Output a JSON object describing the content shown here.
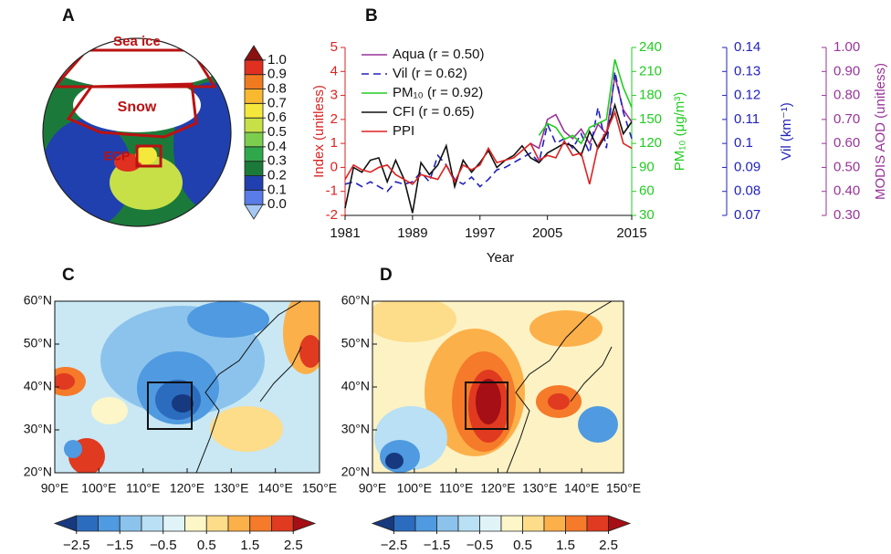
{
  "chart_data": [
    {
      "type": "globe",
      "panel": "A",
      "annotations": [
        "Sea ice",
        "Snow",
        "ECP"
      ],
      "colorbar": {
        "clim": [
          -0.1,
          1.1
        ],
        "colors": [
          "#a7c8f5",
          "#5a7ce8",
          "#2040b0",
          "#1b7a3a",
          "#2fa84c",
          "#7ccf4e",
          "#c8e048",
          "#f5e83c",
          "#f8b830",
          "#f07a20",
          "#e03020",
          "#8b1010"
        ],
        "ticks": [
          {
            "value": 0,
            "label": "0.0"
          },
          {
            "value": 0.1,
            "label": "0.1"
          },
          {
            "value": 0.2,
            "label": "0.2"
          },
          {
            "value": 0.3,
            "label": "0.3"
          },
          {
            "value": 0.4,
            "label": "0.4"
          },
          {
            "value": 0.5,
            "label": "0.5"
          },
          {
            "value": 0.6,
            "label": "0.6"
          },
          {
            "value": 0.7,
            "label": "0.7"
          },
          {
            "value": 0.8,
            "label": "0.8"
          },
          {
            "value": 0.9,
            "label": "0.9"
          },
          {
            "value": 1,
            "label": "1.0"
          }
        ]
      }
    },
    {
      "type": "line",
      "panel": "B",
      "xlabel": "Year",
      "x": [
        1981,
        1982,
        1983,
        1984,
        1985,
        1986,
        1987,
        1988,
        1989,
        1990,
        1991,
        1992,
        1993,
        1994,
        1995,
        1996,
        1997,
        1998,
        1999,
        2000,
        2001,
        2002,
        2003,
        2004,
        2005,
        2006,
        2007,
        2008,
        2009,
        2010,
        2011,
        2012,
        2013,
        2014,
        2015
      ],
      "xlim": [
        1981,
        2015
      ],
      "xticks": [
        1981,
        1989,
        1997,
        2005,
        2015
      ],
      "ylabel": "Index (unitless)",
      "ylim": [
        -2,
        5
      ],
      "yticks": [
        -2,
        -1,
        0,
        1,
        2,
        3,
        4,
        5
      ],
      "ycolor": "#dd2222",
      "y2label": "PM₁₀ (μg/m³)",
      "y2lim": [
        30,
        240
      ],
      "y2ticks": [
        30,
        60,
        90,
        120,
        150,
        180,
        210,
        240
      ],
      "y2color": "#22cc22",
      "y3label": "Vil (km⁻¹)",
      "y3lim": [
        0.07,
        0.14
      ],
      "y3ticks": [
        0.07,
        0.08,
        0.09,
        0.1,
        0.11,
        0.12,
        0.13,
        0.14
      ],
      "y3color": "#2222bb",
      "y4label": "MODIS AOD (unitless)",
      "y4lim": [
        0.3,
        1
      ],
      "y4ticks": [
        {
          "value": 0.3,
          "label": "0.30"
        },
        {
          "value": 0.4,
          "label": "0.40"
        },
        {
          "value": 0.5,
          "label": "0.50"
        },
        {
          "value": 0.6,
          "label": "0.60"
        },
        {
          "value": 0.7,
          "label": "0.70"
        },
        {
          "value": 0.8,
          "label": "0.80"
        },
        {
          "value": 0.9,
          "label": "0.90"
        },
        {
          "value": 1,
          "label": "1.00"
        }
      ],
      "y4color": "#993399",
      "series": [
        {
          "name": "Aqua (r = 0.50)",
          "color": "#993399",
          "axis": "y4",
          "values": [
            null,
            null,
            null,
            null,
            null,
            null,
            null,
            null,
            null,
            null,
            null,
            null,
            null,
            null,
            null,
            null,
            null,
            null,
            null,
            null,
            null,
            null,
            0.6,
            0.58,
            0.7,
            0.72,
            0.65,
            0.62,
            0.66,
            0.6,
            0.68,
            0.64,
            0.88,
            0.74,
            0.69
          ]
        },
        {
          "name": "Vil (r = 0.62)",
          "color": "#2222bb",
          "axis": "y3",
          "dash": true,
          "values": [
            0.083,
            0.084,
            0.082,
            0.084,
            0.082,
            0.08,
            0.084,
            0.083,
            0.084,
            0.088,
            0.084,
            0.095,
            0.091,
            0.085,
            0.083,
            0.086,
            0.082,
            0.085,
            0.089,
            0.09,
            0.092,
            0.094,
            0.096,
            0.092,
            0.108,
            0.1,
            0.102,
            0.098,
            0.104,
            0.096,
            0.115,
            0.098,
            0.13,
            0.113,
            0.102
          ]
        },
        {
          "name": "PM₁₀ (r = 0.92)",
          "color": "#22cc22",
          "axis": "y2",
          "values": [
            null,
            null,
            null,
            null,
            null,
            null,
            null,
            null,
            null,
            null,
            null,
            null,
            null,
            null,
            null,
            null,
            null,
            null,
            null,
            null,
            null,
            null,
            null,
            130,
            145,
            140,
            125,
            130,
            120,
            140,
            145,
            150,
            225,
            190,
            165
          ]
        },
        {
          "name": "CFI (r = 0.65)",
          "color": "#111111",
          "axis": "y",
          "values": [
            -1.7,
            0,
            -0.2,
            0.3,
            0.4,
            -0.6,
            0.3,
            -0.5,
            -1.9,
            0.2,
            -0.3,
            0.1,
            0.9,
            -0.8,
            0.3,
            -0.2,
            0.2,
            0.7,
            0,
            0.3,
            0.5,
            0.9,
            0.4,
            0.2,
            0.6,
            0.8,
            1.0,
            0.9,
            0.5,
            1.5,
            0.8,
            1.4,
            2.6,
            1.4,
            1.9
          ]
        },
        {
          "name": "PPI",
          "color": "#dd2222",
          "axis": "y",
          "values": [
            -0.5,
            0.1,
            -0.1,
            -0.2,
            0,
            0.1,
            -0.3,
            -0.5,
            -0.7,
            -0.3,
            -0.4,
            -0.5,
            0.1,
            -0.6,
            0.1,
            -0.1,
            0.1,
            0.8,
            0.2,
            0.3,
            0.4,
            0.7,
            1.0,
            0.3,
            0.5,
            0.4,
            1.1,
            0.5,
            0.6,
            -0.7,
            0.9,
            1.5,
            2.3,
            1.0,
            0.8
          ]
        }
      ]
    },
    {
      "type": "map",
      "panel": "C",
      "xlim": [
        90,
        150
      ],
      "xticks": [
        {
          "value": 90,
          "label": "90°E"
        },
        {
          "value": 100,
          "label": "100°E"
        },
        {
          "value": 110,
          "label": "110°E"
        },
        {
          "value": 120,
          "label": "120°E"
        },
        {
          "value": 130,
          "label": "130°E"
        },
        {
          "value": 140,
          "label": "140°E"
        },
        {
          "value": 150,
          "label": "150°E"
        }
      ],
      "ylim": [
        20,
        60
      ],
      "yticks": [
        {
          "value": 20,
          "label": "20°N"
        },
        {
          "value": 30,
          "label": "30°N"
        },
        {
          "value": 40,
          "label": "40°N"
        },
        {
          "value": 50,
          "label": "50°N"
        },
        {
          "value": 60,
          "label": "60°N"
        }
      ],
      "colorbar": {
        "clim": [
          -3,
          3
        ],
        "colors": [
          "#17397f",
          "#2b6cbf",
          "#4f9ae0",
          "#8cc3ec",
          "#b9e0f4",
          "#e0f4f8",
          "#fdf6c8",
          "#fddc8a",
          "#fcb04a",
          "#f57a2a",
          "#e03a20",
          "#a50f15"
        ],
        "ticks": [
          {
            "value": -2.5,
            "label": "−2.5"
          },
          {
            "value": -1.5,
            "label": "−1.5"
          },
          {
            "value": -0.5,
            "label": "−0.5"
          },
          0.5,
          1.5,
          2.5
        ]
      }
    },
    {
      "type": "map",
      "panel": "D",
      "xlim": [
        90,
        150
      ],
      "xticks": [
        {
          "value": 90,
          "label": "90°E"
        },
        {
          "value": 100,
          "label": "100°E"
        },
        {
          "value": 110,
          "label": "110°E"
        },
        {
          "value": 120,
          "label": "120°E"
        },
        {
          "value": 130,
          "label": "130°E"
        },
        {
          "value": 140,
          "label": "140°E"
        },
        {
          "value": 150,
          "label": "150°E"
        }
      ],
      "ylim": [
        20,
        60
      ],
      "yticks": [
        {
          "value": 20,
          "label": "20°N"
        },
        {
          "value": 30,
          "label": "30°N"
        },
        {
          "value": 40,
          "label": "40°N"
        },
        {
          "value": 50,
          "label": "50°N"
        },
        {
          "value": 60,
          "label": "60°N"
        }
      ],
      "colorbar": {
        "clim": [
          -3,
          3
        ],
        "colors": [
          "#17397f",
          "#2b6cbf",
          "#4f9ae0",
          "#8cc3ec",
          "#b9e0f4",
          "#e0f4f8",
          "#fdf6c8",
          "#fddc8a",
          "#fcb04a",
          "#f57a2a",
          "#e03a20",
          "#a50f15"
        ],
        "ticks": [
          {
            "value": -2.5,
            "label": "−2.5"
          },
          {
            "value": -1.5,
            "label": "−1.5"
          },
          {
            "value": -0.5,
            "label": "−0.5"
          },
          0.5,
          1.5,
          2.5
        ]
      }
    }
  ]
}
